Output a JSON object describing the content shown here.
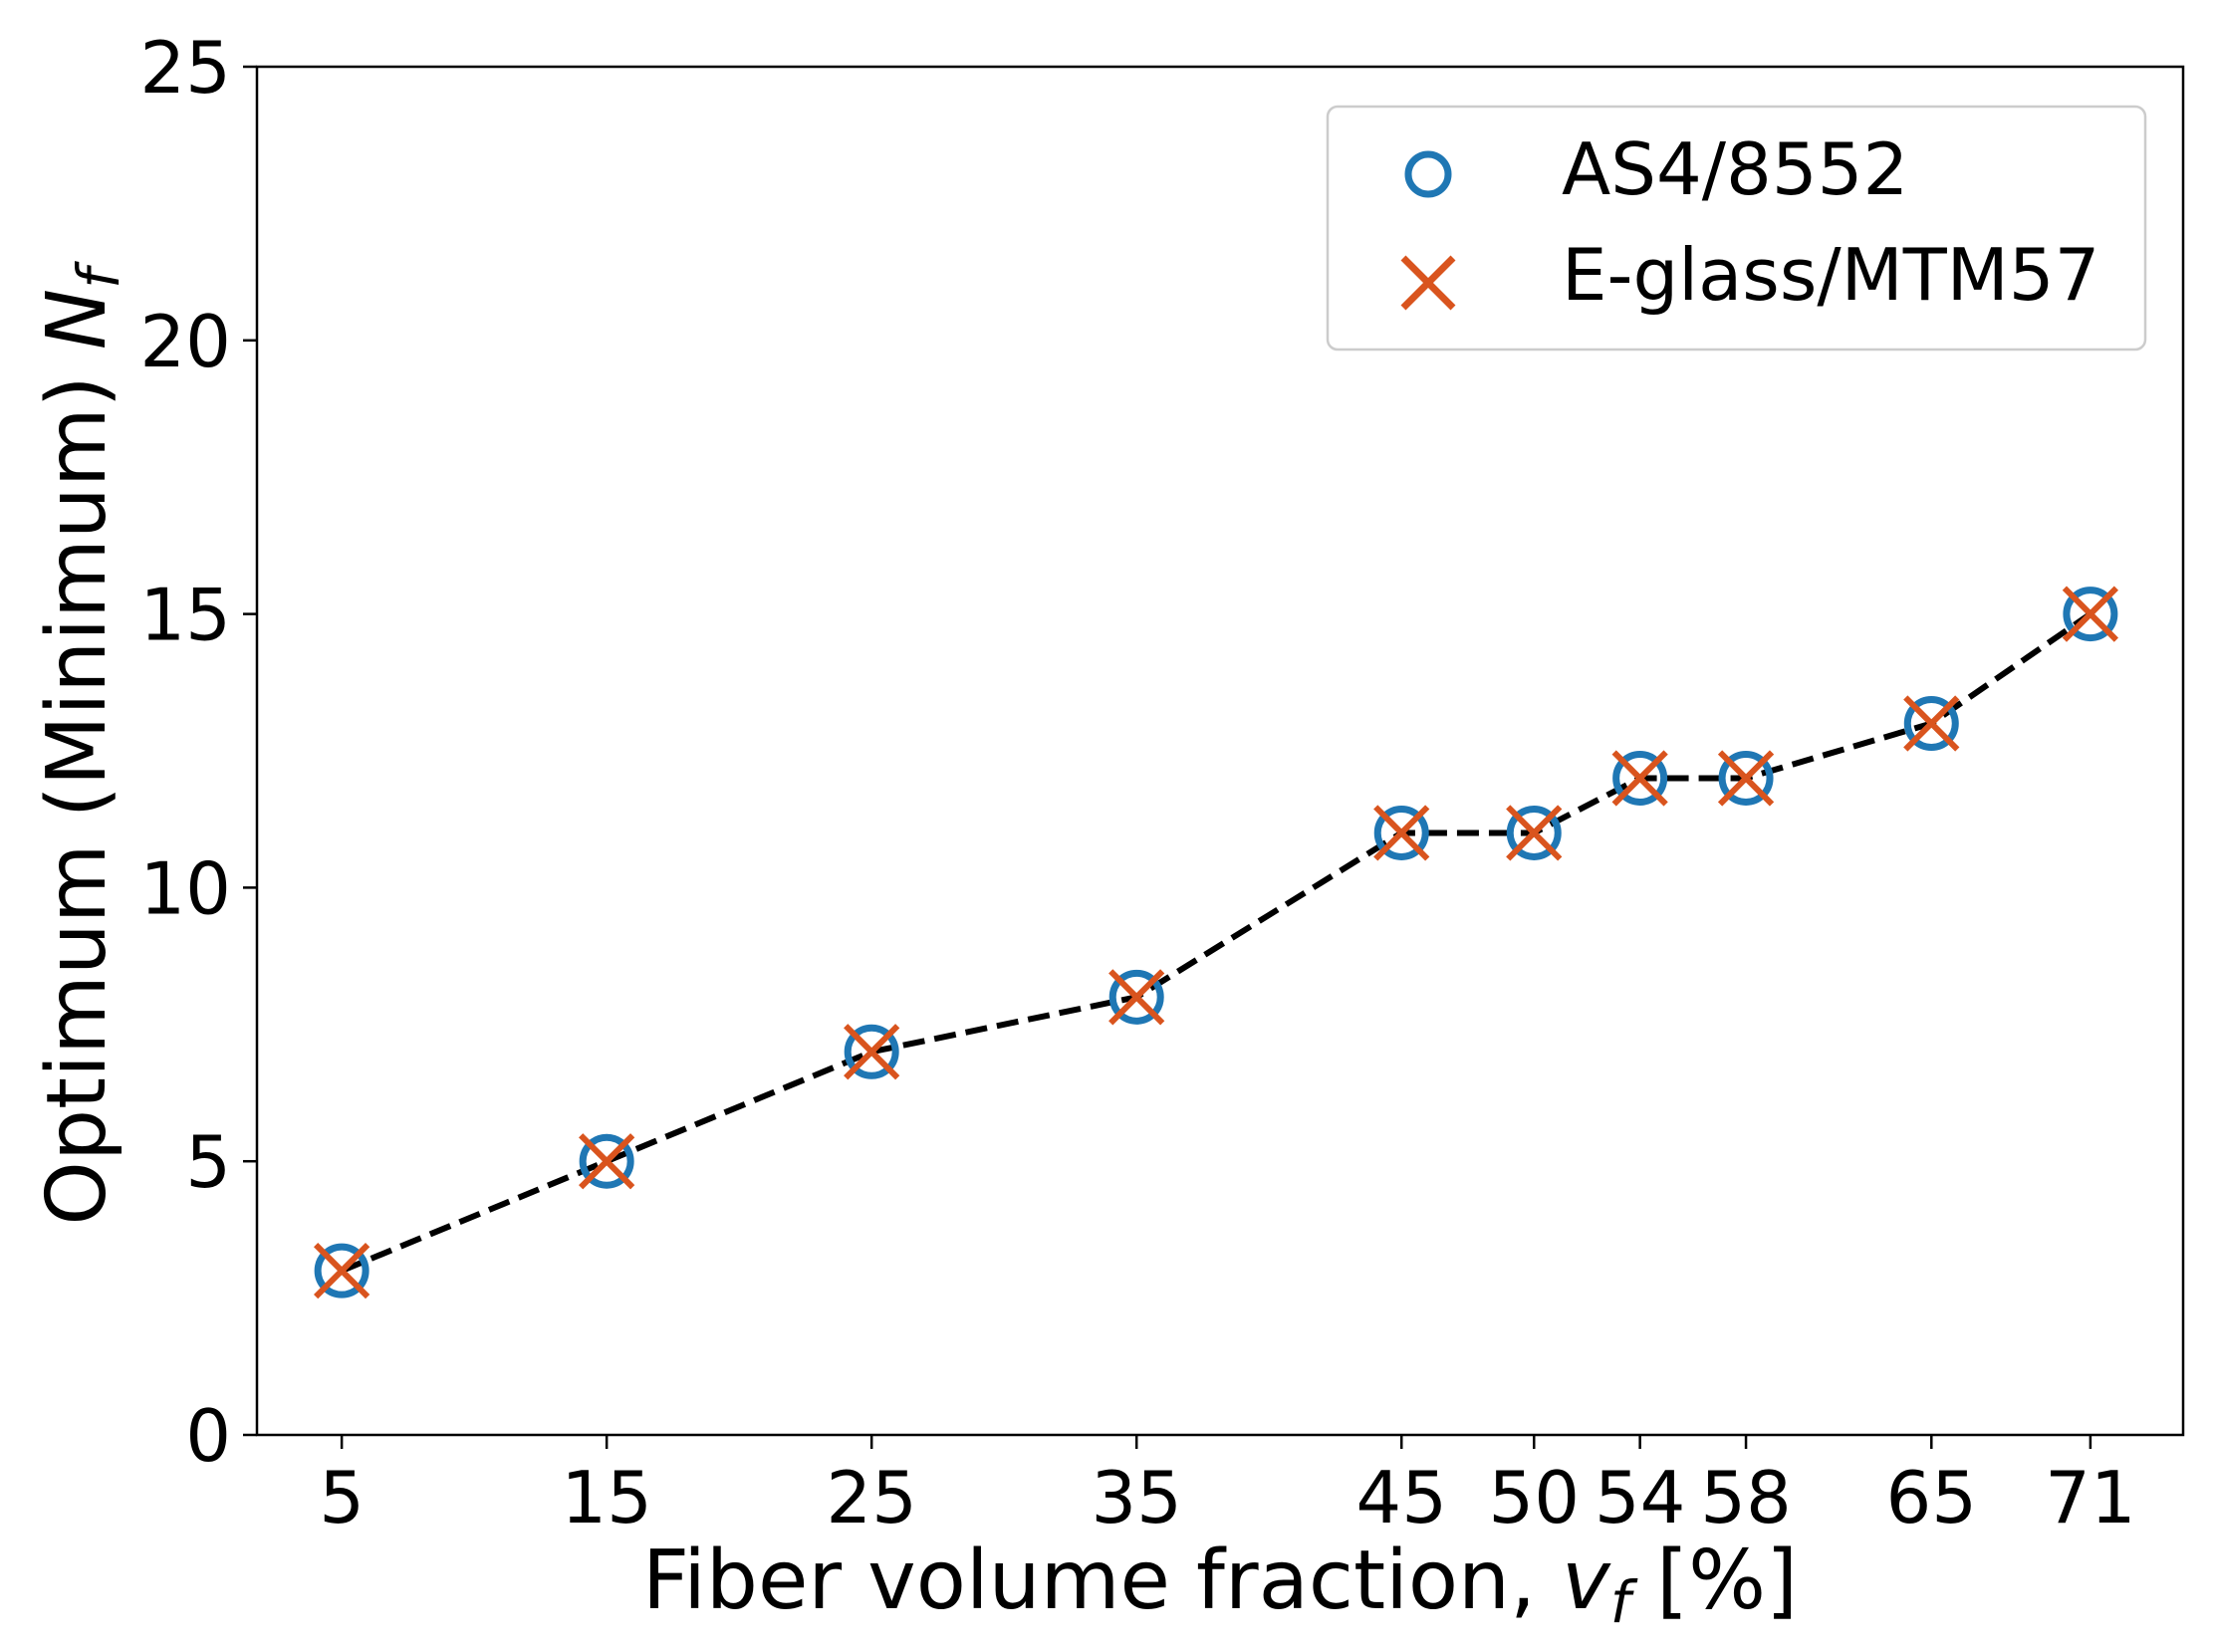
{
  "chart_data": {
    "type": "scatter",
    "x": [
      5,
      15,
      25,
      35,
      45,
      50,
      54,
      58,
      65,
      71
    ],
    "x_tick_labels": [
      "5",
      "15",
      "25",
      "35",
      "45",
      "50",
      "54",
      "58",
      "65",
      "71"
    ],
    "xlim": [
      1.8,
      74.5
    ],
    "ylim": [
      0,
      25
    ],
    "y_ticks": [
      0,
      5,
      10,
      15,
      20,
      25
    ],
    "xlabel": {
      "text": "Fiber volume fraction, ",
      "var": "v",
      "sub": "f",
      "unit": " [%]"
    },
    "ylabel": {
      "text": "Optimum (Minimum) ",
      "var": "N",
      "sub": "f"
    },
    "grid": false,
    "legend_position": "top-right",
    "series": [
      {
        "name": "AS4/8552",
        "marker": "circle",
        "color": "#1f77b4",
        "values": [
          3,
          5,
          7,
          8,
          11,
          11,
          12,
          12,
          13,
          15
        ]
      },
      {
        "name": "E-glass/MTM57",
        "marker": "x",
        "color": "#d9541e",
        "values": [
          3,
          5,
          7,
          8,
          11,
          11,
          12,
          12,
          13,
          15
        ]
      }
    ],
    "trend_line": {
      "style": "dashed",
      "color": "#000000",
      "values": [
        3,
        5,
        7,
        8,
        11,
        11,
        12,
        12,
        13,
        15
      ]
    }
  }
}
